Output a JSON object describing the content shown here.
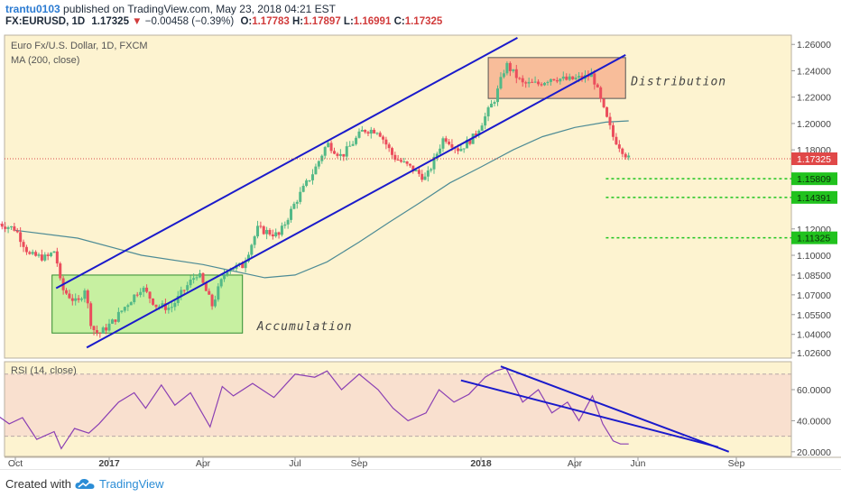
{
  "header": {
    "user": "trantu0103",
    "published_text": "published on TradingView.com, May 23, 2018 04:21 EST",
    "symbol": "FX:EURUSD, 1D",
    "last": "1.17325",
    "change_arrow": "▼",
    "change": "−0.00458 (−0.39%)",
    "open_label": "O:",
    "open": "1.17783",
    "high_label": "H:",
    "high": "1.17897",
    "low_label": "L:",
    "low": "1.16991",
    "close_label": "C:",
    "close": "1.17325"
  },
  "footer": {
    "created_with": "Created with",
    "brand": "TradingView",
    "logo_icon": "tradingview-cloud-icon"
  },
  "chart_data": [
    {
      "type": "candlestick",
      "title": "Euro Fx/U.S. Dollar, 1D, FXCM",
      "indicator_label": "MA (200, close)",
      "x_ticks": [
        "Oct",
        "2017",
        "Apr",
        "Jul",
        "Sep",
        "2018",
        "Apr",
        "Jun",
        "Sep"
      ],
      "x_tick_dates": [
        "2016-10-01",
        "2017-01-01",
        "2017-04-01",
        "2017-07-01",
        "2017-09-01",
        "2018-01-01",
        "2018-04-01",
        "2018-06-01",
        "2018-09-01"
      ],
      "y_ticks": [
        "1.26000",
        "1.24000",
        "1.22000",
        "1.20000",
        "1.18000",
        "1.12000",
        "1.10000",
        "1.08500",
        "1.07000",
        "1.05500",
        "1.04000",
        "1.02600"
      ],
      "ylim": [
        1.022,
        1.267
      ],
      "last_price": "1.17325",
      "levels": [
        {
          "label": "1.15809",
          "value": 1.15809
        },
        {
          "label": "1.14391",
          "value": 1.14391
        },
        {
          "label": "1.11325",
          "value": 1.11325
        }
      ],
      "closes": [
        [
          "2016-09-15",
          1.124
        ],
        [
          "2016-10-01",
          1.12
        ],
        [
          "2016-10-15",
          1.1
        ],
        [
          "2016-11-01",
          1.098
        ],
        [
          "2016-11-09",
          1.104
        ],
        [
          "2016-11-15",
          1.075
        ],
        [
          "2016-12-01",
          1.063
        ],
        [
          "2016-12-08",
          1.075
        ],
        [
          "2016-12-15",
          1.045
        ],
        [
          "2016-12-22",
          1.04
        ],
        [
          "2017-01-05",
          1.05
        ],
        [
          "2017-01-15",
          1.06
        ],
        [
          "2017-02-01",
          1.076
        ],
        [
          "2017-02-15",
          1.062
        ],
        [
          "2017-03-01",
          1.06
        ],
        [
          "2017-03-15",
          1.075
        ],
        [
          "2017-03-27",
          1.087
        ],
        [
          "2017-04-10",
          1.062
        ],
        [
          "2017-04-24",
          1.09
        ],
        [
          "2017-05-10",
          1.092
        ],
        [
          "2017-05-25",
          1.12
        ],
        [
          "2017-06-15",
          1.115
        ],
        [
          "2017-07-01",
          1.14
        ],
        [
          "2017-07-20",
          1.165
        ],
        [
          "2017-08-01",
          1.185
        ],
        [
          "2017-08-15",
          1.175
        ],
        [
          "2017-09-05",
          1.195
        ],
        [
          "2017-09-20",
          1.195
        ],
        [
          "2017-10-05",
          1.175
        ],
        [
          "2017-10-25",
          1.165
        ],
        [
          "2017-11-07",
          1.158
        ],
        [
          "2017-11-25",
          1.19
        ],
        [
          "2017-12-10",
          1.18
        ],
        [
          "2017-12-25",
          1.19
        ],
        [
          "2018-01-05",
          1.205
        ],
        [
          "2018-01-15",
          1.22
        ],
        [
          "2018-01-25",
          1.245
        ],
        [
          "2018-02-10",
          1.23
        ],
        [
          "2018-02-25",
          1.23
        ],
        [
          "2018-03-10",
          1.235
        ],
        [
          "2018-03-25",
          1.233
        ],
        [
          "2018-04-10",
          1.235
        ],
        [
          "2018-04-18",
          1.237
        ],
        [
          "2018-04-28",
          1.212
        ],
        [
          "2018-05-08",
          1.19
        ],
        [
          "2018-05-15",
          1.182
        ],
        [
          "2018-05-23",
          1.17325
        ]
      ],
      "ma200": [
        [
          "2016-10-01",
          1.119
        ],
        [
          "2016-12-01",
          1.113
        ],
        [
          "2017-02-01",
          1.1
        ],
        [
          "2017-04-01",
          1.093
        ],
        [
          "2017-06-01",
          1.083
        ],
        [
          "2017-07-01",
          1.085
        ],
        [
          "2017-08-01",
          1.095
        ],
        [
          "2017-09-01",
          1.11
        ],
        [
          "2017-10-01",
          1.125
        ],
        [
          "2017-11-01",
          1.14
        ],
        [
          "2017-12-01",
          1.155
        ],
        [
          "2018-01-01",
          1.167
        ],
        [
          "2018-02-01",
          1.18
        ],
        [
          "2018-03-01",
          1.19
        ],
        [
          "2018-04-01",
          1.197
        ],
        [
          "2018-05-01",
          1.201
        ],
        [
          "2018-05-23",
          1.202
        ]
      ],
      "annotations": [
        {
          "text": "Accumulation",
          "x_range": [
            "2016-11-06",
            "2017-05-10"
          ],
          "y_range": [
            1.041,
            1.085
          ]
        },
        {
          "text": "Distribution",
          "x_range": [
            "2018-01-08",
            "2018-05-20"
          ],
          "y_range": [
            1.219,
            1.25
          ]
        }
      ],
      "trendlines": [
        {
          "from": [
            "2016-11-10",
            1.075
          ],
          "to": [
            "2018-02-05",
            1.265
          ]
        },
        {
          "from": [
            "2016-12-10",
            1.03
          ],
          "to": [
            "2018-05-20",
            1.252
          ]
        }
      ]
    },
    {
      "type": "line",
      "title": "RSI (14, close)",
      "y_ticks": [
        "60.0000",
        "40.0000",
        "20.0000"
      ],
      "ylim": [
        17,
        78
      ],
      "band": [
        30,
        70
      ],
      "series": [
        {
          "values": [
            [
              "2016-09-10",
              45
            ],
            [
              "2016-09-25",
              38
            ],
            [
              "2016-10-08",
              42
            ],
            [
              "2016-10-22",
              28
            ],
            [
              "2016-11-08",
              33
            ],
            [
              "2016-11-15",
              22
            ],
            [
              "2016-11-28",
              35
            ],
            [
              "2016-12-12",
              32
            ],
            [
              "2016-12-22",
              38
            ],
            [
              "2017-01-10",
              52
            ],
            [
              "2017-01-25",
              58
            ],
            [
              "2017-02-05",
              48
            ],
            [
              "2017-02-20",
              63
            ],
            [
              "2017-03-05",
              50
            ],
            [
              "2017-03-20",
              58
            ],
            [
              "2017-04-08",
              36
            ],
            [
              "2017-04-20",
              62
            ],
            [
              "2017-05-01",
              56
            ],
            [
              "2017-05-20",
              64
            ],
            [
              "2017-06-10",
              55
            ],
            [
              "2017-07-01",
              70
            ],
            [
              "2017-07-20",
              68
            ],
            [
              "2017-08-01",
              72
            ],
            [
              "2017-08-15",
              60
            ],
            [
              "2017-09-01",
              70
            ],
            [
              "2017-09-20",
              60
            ],
            [
              "2017-10-05",
              48
            ],
            [
              "2017-10-20",
              40
            ],
            [
              "2017-11-07",
              45
            ],
            [
              "2017-11-20",
              60
            ],
            [
              "2017-12-05",
              52
            ],
            [
              "2017-12-20",
              57
            ],
            [
              "2018-01-05",
              68
            ],
            [
              "2018-01-15",
              72
            ],
            [
              "2018-01-25",
              74
            ],
            [
              "2018-02-10",
              52
            ],
            [
              "2018-02-25",
              60
            ],
            [
              "2018-03-10",
              45
            ],
            [
              "2018-03-25",
              52
            ],
            [
              "2018-04-05",
              40
            ],
            [
              "2018-04-18",
              56
            ],
            [
              "2018-04-28",
              38
            ],
            [
              "2018-05-08",
              27
            ],
            [
              "2018-05-15",
              25
            ],
            [
              "2018-05-23",
              25
            ]
          ]
        }
      ],
      "trendlines": [
        {
          "from": [
            "2017-12-12",
            66
          ],
          "to": [
            "2018-08-15",
            23
          ]
        },
        {
          "from": [
            "2018-01-20",
            75
          ],
          "to": [
            "2018-08-25",
            20
          ]
        }
      ]
    }
  ]
}
